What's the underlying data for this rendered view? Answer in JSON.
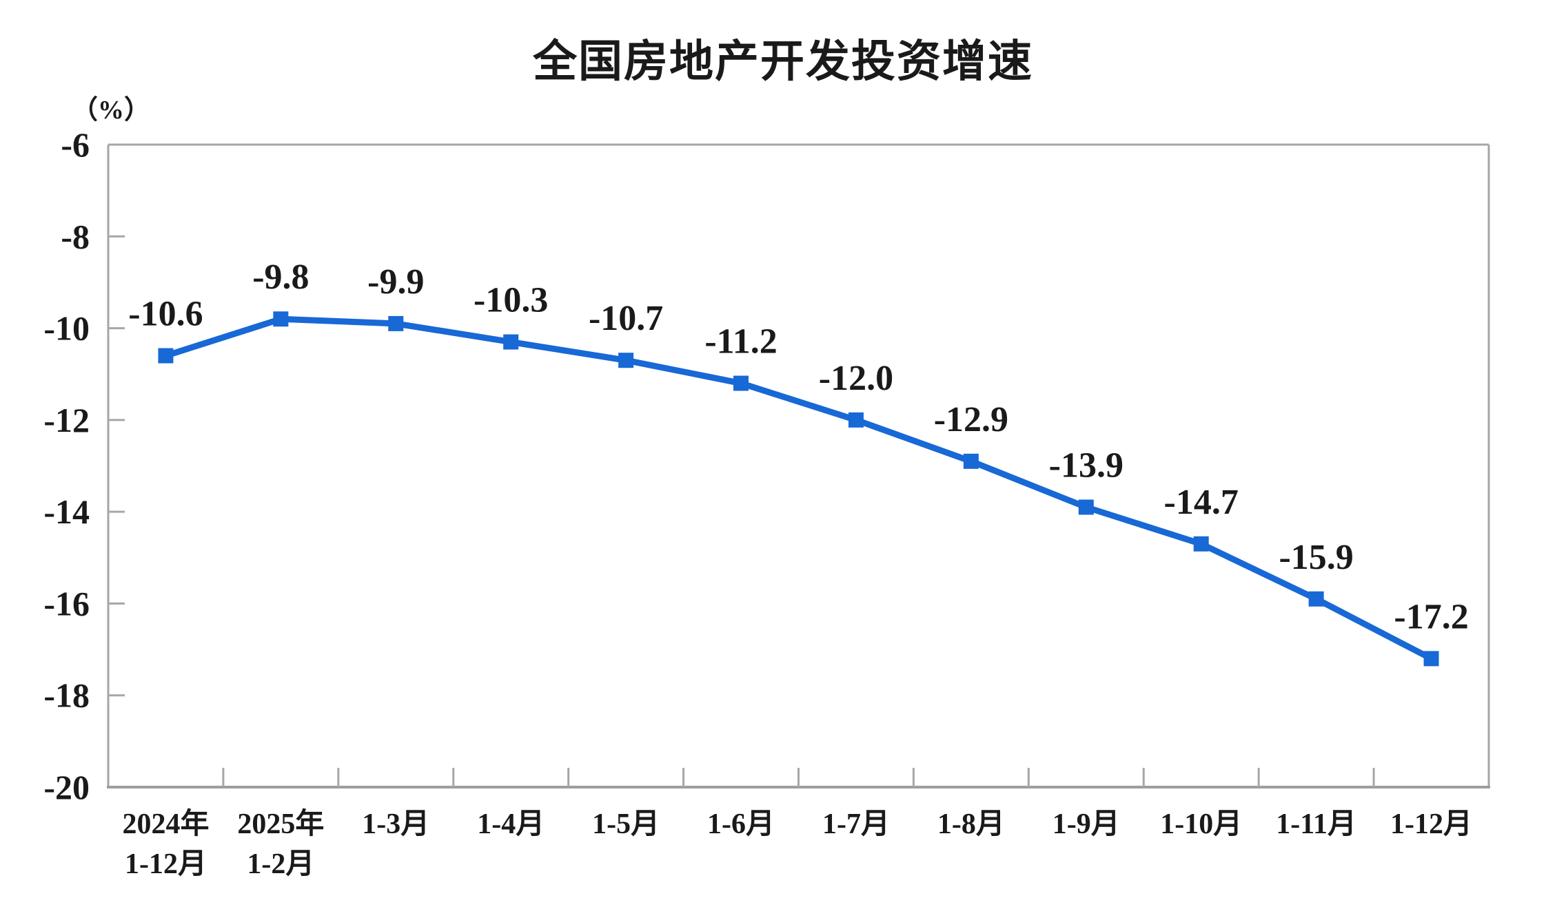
{
  "page": {
    "background": "#ffffff"
  },
  "chart_data": {
    "type": "line",
    "title": "全国房地产开发投资增速",
    "unit_label": "（%）",
    "categories": [
      [
        "2024年",
        "1-12月"
      ],
      [
        "2025年",
        "1-2月"
      ],
      [
        "1-3月"
      ],
      [
        "1-4月"
      ],
      [
        "1-5月"
      ],
      [
        "1-6月"
      ],
      [
        "1-7月"
      ],
      [
        "1-8月"
      ],
      [
        "1-9月"
      ],
      [
        "1-10月"
      ],
      [
        "1-11月"
      ],
      [
        "1-12月"
      ]
    ],
    "values": [
      -10.6,
      -9.8,
      -9.9,
      -10.3,
      -10.7,
      -11.2,
      -12.0,
      -12.9,
      -13.9,
      -14.7,
      -15.9,
      -17.2
    ],
    "data_labels": [
      "-10.6",
      "-9.8",
      "-9.9",
      "-10.3",
      "-10.7",
      "-11.2",
      "-12.0",
      "-12.9",
      "-13.9",
      "-14.7",
      "-15.9",
      "-17.2"
    ],
    "y_ticks": [
      -6,
      -8,
      -10,
      -12,
      -14,
      -16,
      -18,
      -20
    ],
    "y_tick_labels": [
      "-6",
      "-8",
      "-10",
      "-12",
      "-14",
      "-16",
      "-18",
      "-20"
    ],
    "ylim": [
      -20,
      -6
    ],
    "grid": false,
    "legend": "none",
    "marker": "square",
    "line_color": "#1868D6",
    "text_color": "#1A1A1A",
    "axis_color": "#A6A6A6"
  }
}
